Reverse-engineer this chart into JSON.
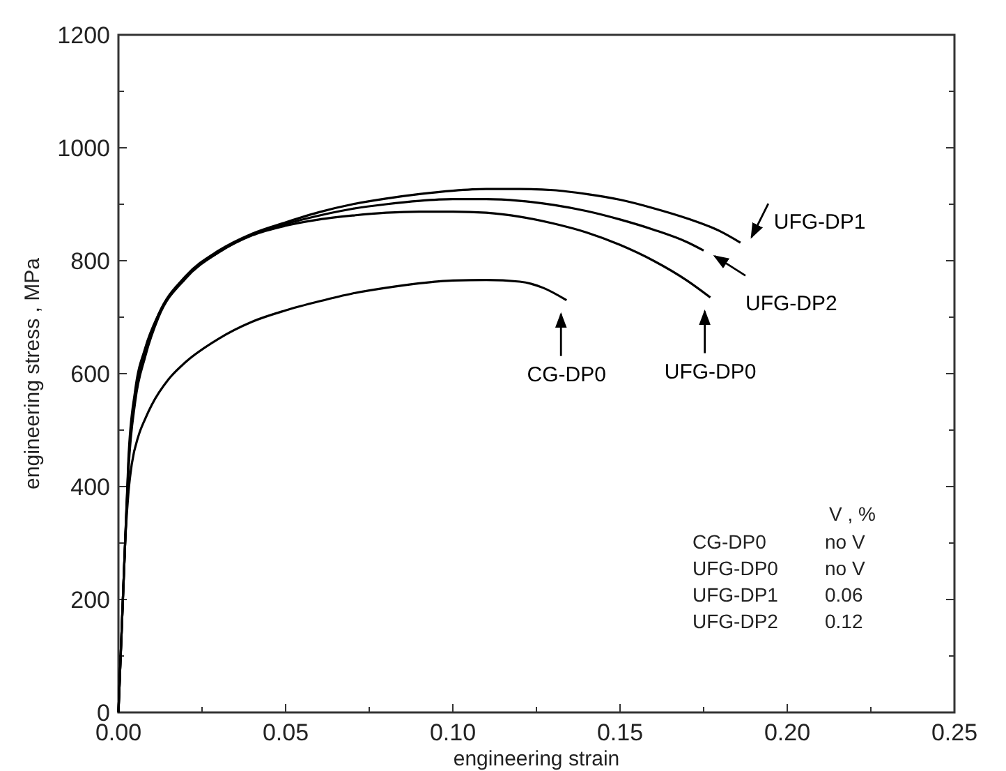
{
  "chart_data": {
    "type": "line",
    "xlabel": "engineering strain",
    "ylabel": "engineering stress , MPa",
    "xlim": [
      0,
      0.25
    ],
    "ylim": [
      0,
      1200
    ],
    "xticks": [
      {
        "value": 0,
        "label": "0.00"
      },
      {
        "value": 0.025,
        "label": null
      },
      {
        "value": 0.05,
        "label": "0.05"
      },
      {
        "value": 0.075,
        "label": null
      },
      {
        "value": 0.1,
        "label": "0.10"
      },
      {
        "value": 0.125,
        "label": null
      },
      {
        "value": 0.15,
        "label": "0.15"
      },
      {
        "value": 0.175,
        "label": null
      },
      {
        "value": 0.2,
        "label": "0.20"
      },
      {
        "value": 0.225,
        "label": null
      },
      {
        "value": 0.25,
        "label": "0.25"
      }
    ],
    "yticks": [
      0,
      {
        "value": 100,
        "label": null
      },
      200,
      {
        "value": 300,
        "label": null
      },
      400,
      {
        "value": 500,
        "label": null
      },
      600,
      {
        "value": 700,
        "label": null
      },
      800,
      {
        "value": 900,
        "label": null
      },
      1000,
      {
        "value": 1100,
        "label": null
      },
      1200
    ],
    "grid": false,
    "legend": "right",
    "marker": "none",
    "line_style": "solid",
    "series": [
      {
        "name": "CG-DP0",
        "color": "#000000",
        "x": [
          0,
          0.001,
          0.002,
          0.003,
          0.004,
          0.006,
          0.008,
          0.01,
          0.015,
          0.02,
          0.03,
          0.04,
          0.05,
          0.06,
          0.07,
          0.08,
          0.09,
          0.1,
          0.11,
          0.12,
          0.127,
          0.134
        ],
        "values": [
          0,
          150,
          300,
          390,
          440,
          490,
          520,
          545,
          590,
          620,
          662,
          692,
          712,
          728,
          742,
          752,
          760,
          765,
          766,
          763,
          752,
          730
        ]
      },
      {
        "name": "UFG-DP0",
        "color": "#000000",
        "x": [
          0,
          0.001,
          0.002,
          0.003,
          0.005,
          0.008,
          0.012,
          0.02,
          0.03,
          0.04,
          0.05,
          0.06,
          0.07,
          0.08,
          0.09,
          0.1,
          0.11,
          0.12,
          0.13,
          0.14,
          0.15,
          0.16,
          0.17,
          0.177
        ],
        "values": [
          0,
          150,
          300,
          450,
          570,
          645,
          705,
          770,
          815,
          845,
          862,
          873,
          880,
          885,
          887,
          887,
          885,
          878,
          866,
          850,
          828,
          800,
          765,
          735
        ]
      },
      {
        "name": "UFG-DP1",
        "color": "#000000",
        "x": [
          0,
          0.001,
          0.002,
          0.003,
          0.005,
          0.008,
          0.012,
          0.02,
          0.03,
          0.04,
          0.05,
          0.06,
          0.07,
          0.08,
          0.09,
          0.1,
          0.11,
          0.12,
          0.13,
          0.14,
          0.15,
          0.16,
          0.17,
          0.18,
          0.186
        ],
        "values": [
          0,
          150,
          300,
          440,
          560,
          640,
          705,
          772,
          818,
          848,
          868,
          886,
          900,
          910,
          918,
          924,
          927,
          927,
          925,
          918,
          908,
          893,
          875,
          852,
          832
        ]
      },
      {
        "name": "UFG-DP2",
        "color": "#000000",
        "x": [
          0,
          0.001,
          0.002,
          0.003,
          0.005,
          0.008,
          0.012,
          0.02,
          0.03,
          0.04,
          0.05,
          0.06,
          0.07,
          0.08,
          0.09,
          0.1,
          0.11,
          0.12,
          0.13,
          0.14,
          0.15,
          0.16,
          0.17,
          0.175
        ],
        "values": [
          0,
          150,
          300,
          430,
          550,
          630,
          700,
          768,
          815,
          846,
          865,
          880,
          892,
          900,
          906,
          909,
          909,
          906,
          899,
          888,
          873,
          855,
          833,
          818
        ]
      }
    ],
    "annotations": [
      "V , %",
      "CG-DP0",
      "no V",
      "UFG-DP0",
      "no V",
      "UFG-DP1",
      "0.06",
      "UFG-DP2",
      "0.12"
    ]
  }
}
